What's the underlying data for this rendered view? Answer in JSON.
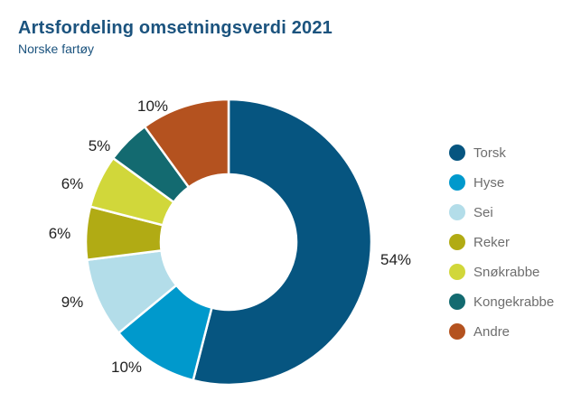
{
  "header": {
    "title": "Artsfordeling omsetningsverdi 2021",
    "subtitle": "Norske fartøy"
  },
  "colors": {
    "title_text": "#1b537e",
    "percent_label_text": "#1f1f1f",
    "legend_text": "#6e6e6e",
    "background": "#ffffff",
    "slice_separator": "#ffffff"
  },
  "chart_data": {
    "type": "pie",
    "subtype": "donut",
    "title": "Artsfordeling omsetningsverdi 2021",
    "subtitle": "Norske fartøy",
    "unit": "%",
    "start_angle_deg": 0,
    "clockwise": true,
    "inner_radius_ratio": 0.47,
    "legend_position": "right",
    "slices": [
      {
        "name": "Torsk",
        "value": 54,
        "pct_label": "54%",
        "color": "#065580"
      },
      {
        "name": "Hyse",
        "value": 10,
        "pct_label": "10%",
        "color": "#0099cc"
      },
      {
        "name": "Sei",
        "value": 9,
        "pct_label": "9%",
        "color": "#b3dde9"
      },
      {
        "name": "Reker",
        "value": 6,
        "pct_label": "6%",
        "color": "#b1ab14"
      },
      {
        "name": "Snøkrabbe",
        "value": 6,
        "pct_label": "6%",
        "color": "#d1d73a"
      },
      {
        "name": "Kongekrabbe",
        "value": 5,
        "pct_label": "5%",
        "color": "#136a70"
      },
      {
        "name": "Andre",
        "value": 10,
        "pct_label": "10%",
        "color": "#b4521f"
      }
    ]
  }
}
